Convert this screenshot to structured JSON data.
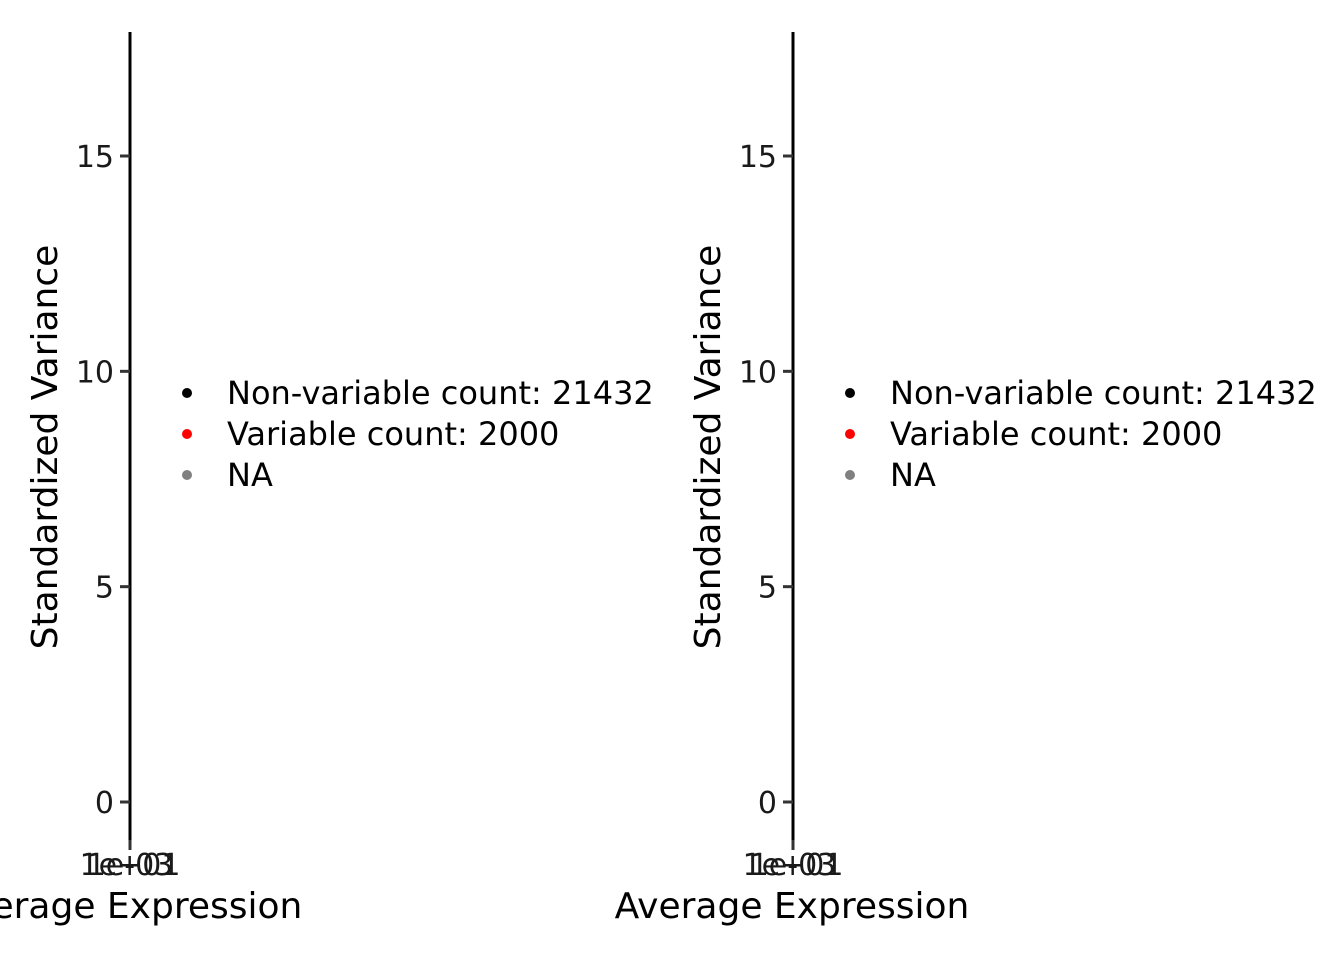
{
  "chart_data": [
    {
      "type": "scatter",
      "xlabel": "Average Expression",
      "ylabel": "Standardized Variance",
      "x_scale": "log",
      "x_tick_labels": [
        "1e+01",
        "1e-03"
      ],
      "y_ticks": [
        0,
        5,
        10,
        15
      ],
      "y_tick_labels": [
        "0",
        "5",
        "10",
        "15"
      ],
      "ylim": [
        -0.8,
        17.8
      ],
      "grid": false,
      "legend_position": "right",
      "series": [
        {
          "name": "Non-variable count: 21432",
          "color": "#000000",
          "points": []
        },
        {
          "name": "Variable count: 2000",
          "color": "#ff0000",
          "points": []
        },
        {
          "name": "NA",
          "color": "#808080",
          "points": []
        }
      ]
    },
    {
      "type": "scatter",
      "xlabel": "Average Expression",
      "ylabel": "Standardized Variance",
      "x_scale": "log",
      "x_tick_labels": [
        "1e+01",
        "1e-03"
      ],
      "y_ticks": [
        0,
        5,
        10,
        15
      ],
      "y_tick_labels": [
        "0",
        "5",
        "10",
        "15"
      ],
      "ylim": [
        -0.8,
        17.8
      ],
      "grid": false,
      "legend_position": "right",
      "series": [
        {
          "name": "Non-variable count: 21432",
          "color": "#000000",
          "points": []
        },
        {
          "name": "Variable count: 2000",
          "color": "#ff0000",
          "points": []
        },
        {
          "name": "NA",
          "color": "#808080",
          "points": []
        }
      ]
    }
  ]
}
